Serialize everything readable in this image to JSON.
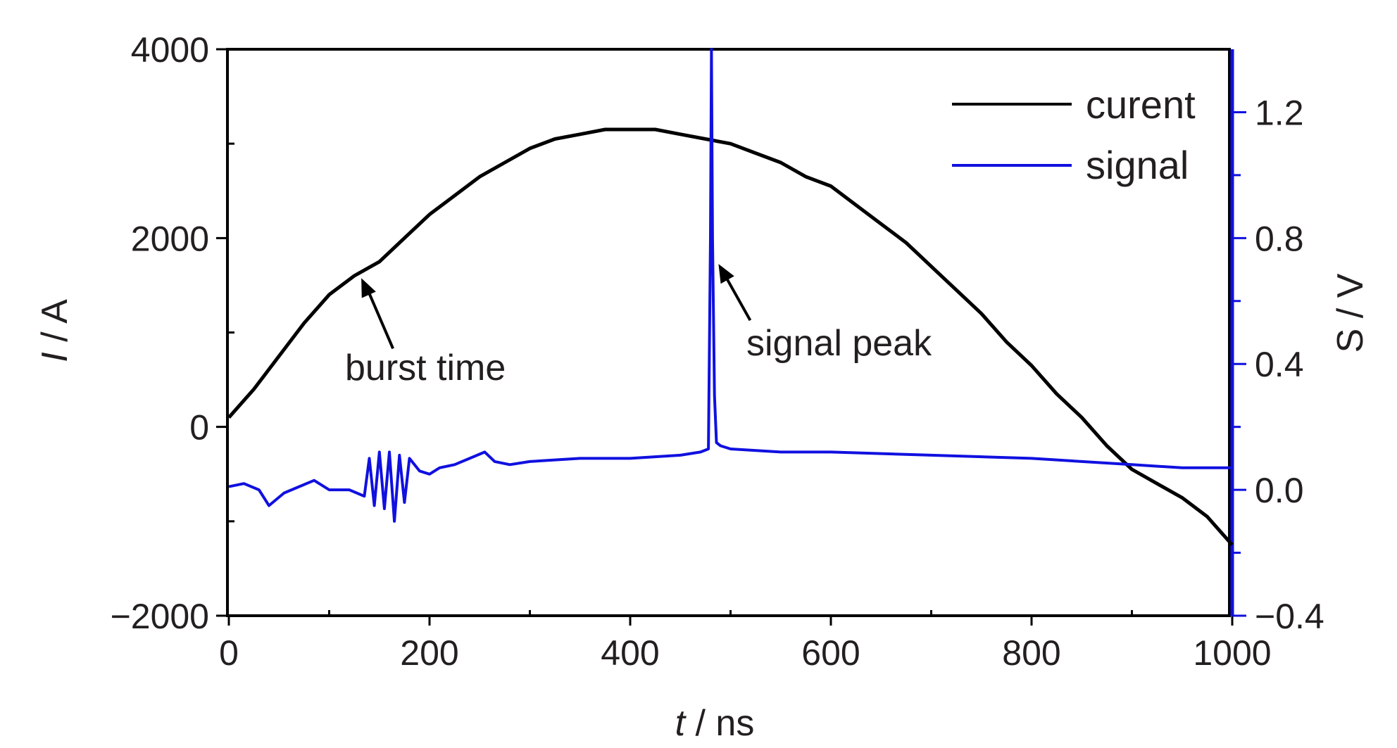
{
  "chart_data": {
    "type": "line",
    "x_axis": {
      "label_var": "t",
      "label_unit": " / ns",
      "range": [
        0,
        1000
      ],
      "ticks": [
        0,
        200,
        400,
        600,
        800,
        1000
      ],
      "tick_labels": [
        "0",
        "200",
        "400",
        "600",
        "800",
        "1000"
      ]
    },
    "y_left": {
      "label_var": "I",
      "label_unit": " / A",
      "range": [
        -2000,
        4000
      ],
      "ticks": [
        -2000,
        0,
        2000,
        4000
      ],
      "tick_labels": [
        "−2000",
        "0",
        "2000",
        "4000"
      ],
      "color": "#000000"
    },
    "y_right": {
      "label": "S / V",
      "range": [
        -0.4,
        1.4
      ],
      "ticks": [
        -0.4,
        0.0,
        0.4,
        0.8,
        1.2
      ],
      "tick_labels": [
        "−0.4",
        "0.0",
        "0.4",
        "0.8",
        "1.2"
      ],
      "color": "#1010e0"
    },
    "grid": false,
    "legend_position": "top-right",
    "series": [
      {
        "name": "curent",
        "axis": "left",
        "color": "#000000",
        "x": [
          0,
          25,
          50,
          75,
          100,
          125,
          150,
          175,
          200,
          225,
          250,
          275,
          300,
          325,
          350,
          375,
          400,
          425,
          450,
          475,
          500,
          525,
          550,
          575,
          600,
          625,
          650,
          675,
          700,
          725,
          750,
          775,
          800,
          825,
          850,
          875,
          900,
          925,
          950,
          975,
          1000
        ],
        "y": [
          100,
          400,
          750,
          1100,
          1400,
          1600,
          1750,
          2000,
          2250,
          2450,
          2650,
          2800,
          2950,
          3050,
          3100,
          3150,
          3150,
          3150,
          3100,
          3050,
          3000,
          2900,
          2800,
          2650,
          2550,
          2350,
          2150,
          1950,
          1700,
          1450,
          1200,
          900,
          650,
          350,
          100,
          -200,
          -450,
          -600,
          -750,
          -950,
          -1250
        ]
      },
      {
        "name": "signal",
        "axis": "right",
        "color": "#1010e0",
        "x": [
          0,
          15,
          30,
          40,
          55,
          70,
          85,
          100,
          120,
          135,
          140,
          145,
          150,
          155,
          160,
          165,
          170,
          175,
          180,
          190,
          200,
          210,
          225,
          240,
          255,
          265,
          280,
          300,
          350,
          400,
          450,
          470,
          478,
          480,
          481,
          482,
          484,
          486,
          490,
          500,
          550,
          600,
          700,
          800,
          900,
          950,
          1000
        ],
        "y": [
          0.01,
          0.02,
          0.0,
          -0.05,
          -0.01,
          0.01,
          0.03,
          0.0,
          0.0,
          -0.02,
          0.1,
          -0.05,
          0.12,
          -0.06,
          0.12,
          -0.1,
          0.11,
          -0.04,
          0.1,
          0.06,
          0.05,
          0.07,
          0.08,
          0.1,
          0.12,
          0.09,
          0.08,
          0.09,
          0.1,
          0.1,
          0.11,
          0.12,
          0.13,
          0.8,
          1.4,
          0.8,
          0.3,
          0.15,
          0.14,
          0.13,
          0.12,
          0.12,
          0.11,
          0.1,
          0.08,
          0.07,
          0.07
        ]
      }
    ],
    "annotations": [
      {
        "text": "burst time",
        "x": 125,
        "y_left": 1650
      },
      {
        "text": "signal peak",
        "x": 481,
        "y_left": 1800
      }
    ]
  }
}
